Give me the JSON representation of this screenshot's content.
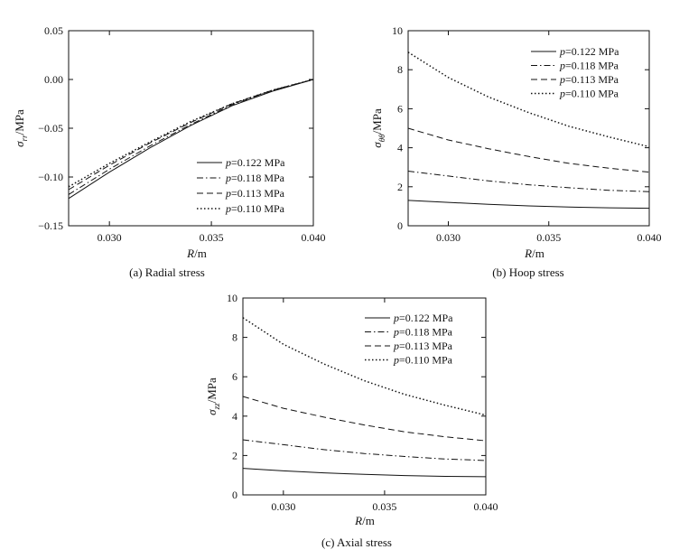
{
  "chart_data": [
    {
      "type": "line",
      "caption": "(a) Radial stress",
      "xlabel": "R/m",
      "ylabel": "σ_rr/MPa",
      "xlim": [
        0.028,
        0.04
      ],
      "ylim": [
        -0.15,
        0.05
      ],
      "xticks": [
        0.03,
        0.035,
        0.04
      ],
      "xtick_labels": [
        "0.030",
        "0.035",
        "0.040"
      ],
      "yticks": [
        -0.15,
        -0.1,
        -0.05,
        0.0,
        0.05
      ],
      "ytick_labels": [
        "−0.15",
        "−0.10",
        "−0.05",
        "0.00",
        "0.05"
      ],
      "legend_position": "bottom-right",
      "series": [
        {
          "name": "p=0.122 MPa",
          "style": "solid",
          "x": [
            0.028,
            0.03,
            0.032,
            0.034,
            0.036,
            0.038,
            0.04
          ],
          "values": [
            -0.122,
            -0.095,
            -0.07,
            -0.047,
            -0.027,
            -0.012,
            0.0
          ]
        },
        {
          "name": "p=0.118 MPa",
          "style": "dashdot",
          "x": [
            0.028,
            0.03,
            0.032,
            0.034,
            0.036,
            0.038,
            0.04
          ],
          "values": [
            -0.118,
            -0.092,
            -0.068,
            -0.046,
            -0.026,
            -0.011,
            0.0
          ]
        },
        {
          "name": "p=0.113 MPa",
          "style": "dashed",
          "x": [
            0.028,
            0.03,
            0.032,
            0.034,
            0.036,
            0.038,
            0.04
          ],
          "values": [
            -0.113,
            -0.088,
            -0.065,
            -0.044,
            -0.025,
            -0.011,
            0.0
          ]
        },
        {
          "name": "p=0.110 MPa",
          "style": "dotted",
          "x": [
            0.028,
            0.03,
            0.032,
            0.034,
            0.036,
            0.038,
            0.04
          ],
          "values": [
            -0.11,
            -0.086,
            -0.064,
            -0.043,
            -0.025,
            -0.011,
            0.0
          ]
        }
      ]
    },
    {
      "type": "line",
      "caption": "(b) Hoop stress",
      "xlabel": "R/m",
      "ylabel": "σ_θθ/MPa",
      "xlim": [
        0.028,
        0.04
      ],
      "ylim": [
        0,
        10
      ],
      "xticks": [
        0.03,
        0.035,
        0.04
      ],
      "xtick_labels": [
        "0.030",
        "0.035",
        "0.040"
      ],
      "yticks": [
        0,
        2,
        4,
        6,
        8,
        10
      ],
      "ytick_labels": [
        "0",
        "2",
        "4",
        "6",
        "8",
        "10"
      ],
      "legend_position": "top-right",
      "series": [
        {
          "name": "p=0.122 MPa",
          "style": "solid",
          "x": [
            0.028,
            0.03,
            0.032,
            0.034,
            0.036,
            0.038,
            0.04
          ],
          "values": [
            1.3,
            1.2,
            1.1,
            1.02,
            0.96,
            0.92,
            0.9
          ]
        },
        {
          "name": "p=0.118 MPa",
          "style": "dashdot",
          "x": [
            0.028,
            0.03,
            0.032,
            0.034,
            0.036,
            0.038,
            0.04
          ],
          "values": [
            2.8,
            2.55,
            2.3,
            2.1,
            1.95,
            1.82,
            1.75
          ]
        },
        {
          "name": "p=0.113 MPa",
          "style": "dashed",
          "x": [
            0.028,
            0.03,
            0.032,
            0.034,
            0.036,
            0.038,
            0.04
          ],
          "values": [
            5.0,
            4.4,
            3.95,
            3.55,
            3.2,
            2.95,
            2.75
          ]
        },
        {
          "name": "p=0.110 MPa",
          "style": "dotted",
          "x": [
            0.028,
            0.03,
            0.032,
            0.034,
            0.036,
            0.038,
            0.04
          ],
          "values": [
            8.9,
            7.6,
            6.6,
            5.8,
            5.1,
            4.55,
            4.05
          ]
        }
      ]
    },
    {
      "type": "line",
      "caption": "(c) Axial stress",
      "xlabel": "R/m",
      "ylabel": "σ_zz/MPa",
      "xlim": [
        0.028,
        0.04
      ],
      "ylim": [
        0,
        10
      ],
      "xticks": [
        0.03,
        0.035,
        0.04
      ],
      "xtick_labels": [
        "0.030",
        "0.035",
        "0.040"
      ],
      "yticks": [
        0,
        2,
        4,
        6,
        8,
        10
      ],
      "ytick_labels": [
        "0",
        "2",
        "4",
        "6",
        "8",
        "10"
      ],
      "legend_position": "top-right",
      "series": [
        {
          "name": "p=0.122 MPa",
          "style": "solid",
          "x": [
            0.028,
            0.03,
            0.032,
            0.034,
            0.036,
            0.038,
            0.04
          ],
          "values": [
            1.35,
            1.22,
            1.12,
            1.04,
            0.98,
            0.94,
            0.92
          ]
        },
        {
          "name": "p=0.118 MPa",
          "style": "dashdot",
          "x": [
            0.028,
            0.03,
            0.032,
            0.034,
            0.036,
            0.038,
            0.04
          ],
          "values": [
            2.8,
            2.55,
            2.3,
            2.1,
            1.95,
            1.82,
            1.75
          ]
        },
        {
          "name": "p=0.113 MPa",
          "style": "dashed",
          "x": [
            0.028,
            0.03,
            0.032,
            0.034,
            0.036,
            0.038,
            0.04
          ],
          "values": [
            5.0,
            4.4,
            3.95,
            3.55,
            3.2,
            2.95,
            2.75
          ]
        },
        {
          "name": "p=0.110 MPa",
          "style": "dotted",
          "x": [
            0.028,
            0.03,
            0.032,
            0.034,
            0.036,
            0.038,
            0.04
          ],
          "values": [
            9.0,
            7.65,
            6.65,
            5.8,
            5.1,
            4.55,
            4.05
          ]
        }
      ]
    }
  ]
}
